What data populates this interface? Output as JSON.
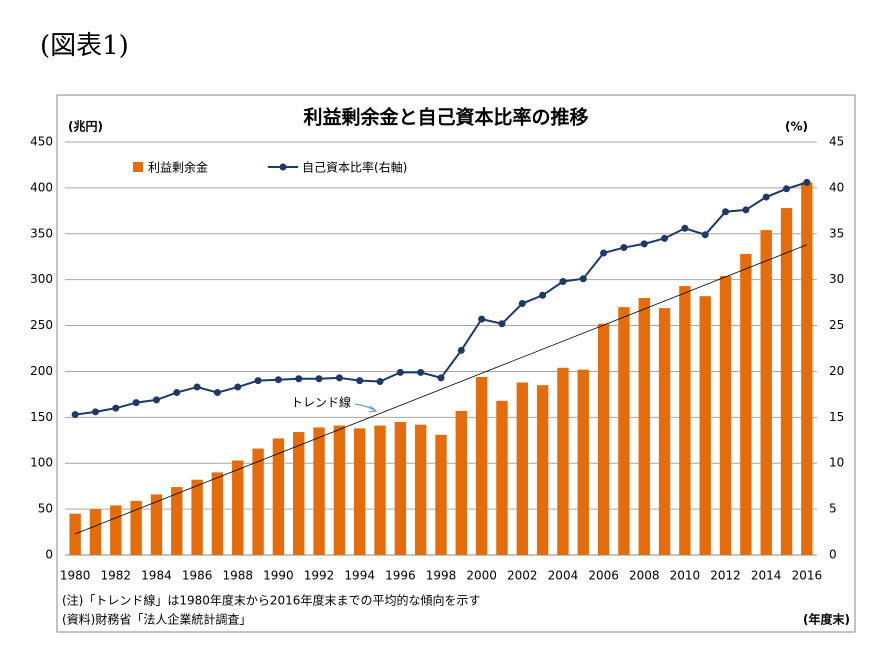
{
  "heading": "(図表1)",
  "chart_data": {
    "type": "bar-line",
    "title": "利益剰余金と自己資本比率の推移",
    "y_label": "(兆円)",
    "y2_label": "(%)",
    "x_label": "(年度末)",
    "notes": [
      "(注)「トレンド線」は1980年度末から2016年度末までの平均的な傾向を示す",
      "(資料)財務省「法人企業統計調査」"
    ],
    "categories": [
      "1980",
      null,
      "1982",
      null,
      "1984",
      null,
      "1986",
      null,
      "1988",
      null,
      "1990",
      null,
      "1992",
      null,
      "1994",
      null,
      "1996",
      null,
      "1998",
      null,
      "2000",
      null,
      "2002",
      null,
      "2004",
      null,
      "2006",
      null,
      "2008",
      null,
      "2010",
      null,
      "2012",
      null,
      "2014",
      null,
      "2016"
    ],
    "series": [
      {
        "name": "利益剰余金",
        "color": "#e46c0a",
        "kind": "bar",
        "values": [
          45,
          50,
          54,
          59,
          66,
          74,
          82,
          90,
          103,
          116,
          127,
          134,
          139,
          141,
          138,
          141,
          145,
          142,
          131,
          157,
          194,
          168,
          188,
          185,
          204,
          202,
          252,
          270,
          280,
          269,
          293,
          282,
          304,
          328,
          354,
          378,
          406
        ]
      },
      {
        "name": "自己資本比率(右軸)",
        "color": "#1f3864",
        "kind": "line",
        "axis": "y2",
        "values": [
          15.3,
          15.6,
          16.0,
          16.6,
          16.9,
          17.7,
          18.3,
          17.7,
          18.3,
          19.0,
          19.1,
          19.2,
          19.2,
          19.3,
          19.0,
          18.9,
          19.9,
          19.9,
          19.3,
          22.3,
          25.7,
          25.2,
          27.4,
          28.3,
          29.8,
          30.1,
          32.9,
          33.5,
          33.9,
          34.5,
          35.6,
          34.9,
          37.4,
          37.6,
          39.0,
          39.9,
          40.6
        ]
      }
    ],
    "trend": {
      "name": "トレンド線",
      "start": 23,
      "end": 338
    },
    "ylim": [
      0,
      450
    ],
    "yticks": [
      0,
      50,
      100,
      150,
      200,
      250,
      300,
      350,
      400,
      450
    ],
    "y2lim": [
      0,
      45
    ],
    "y2ticks": [
      0,
      5,
      10,
      15,
      20,
      25,
      30,
      35,
      40,
      45
    ],
    "grid": true
  }
}
